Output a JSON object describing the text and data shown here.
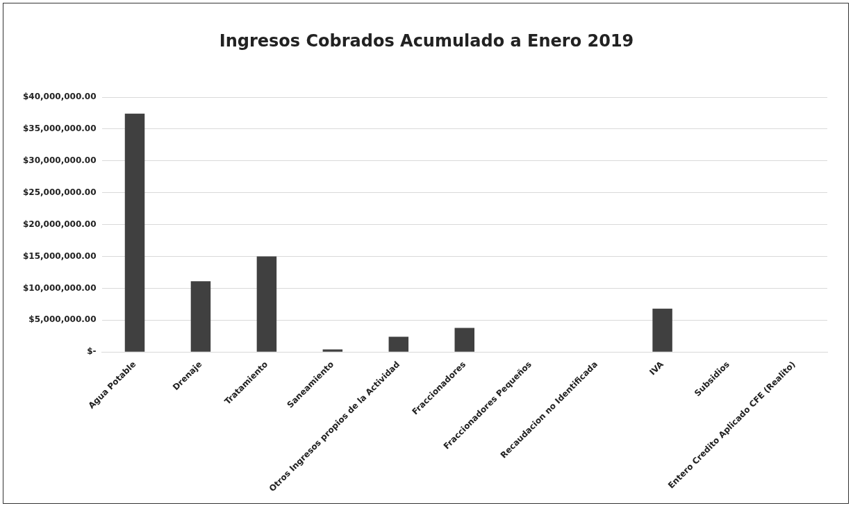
{
  "chart_data": {
    "type": "bar",
    "title": "Ingresos Cobrados Acumulado a Enero 2019",
    "categories": [
      "Agua Potable",
      "Drenaje",
      "Tratamiento",
      "Saneamiento",
      "Otros Ingresos propios de la Actividad",
      "Fraccionadores",
      "Fraccionadores Pequeños",
      "Recaudacion no Identificada",
      "IVA",
      "Subsidios",
      "Entero Credito Aplicado CFE (Realito)"
    ],
    "values": [
      37400000,
      11100000,
      15000000,
      400000,
      2400000,
      3800000,
      0,
      0,
      6800000,
      0,
      0
    ],
    "color": "#404040",
    "ylim": [
      0,
      40000000
    ],
    "yticks": [
      {
        "value": 0,
        "label": "$-"
      },
      {
        "value": 5000000,
        "label": "$5,000,000.00"
      },
      {
        "value": 10000000,
        "label": "$10,000,000.00"
      },
      {
        "value": 15000000,
        "label": "$15,000,000.00"
      },
      {
        "value": 20000000,
        "label": "$20,000,000.00"
      },
      {
        "value": 25000000,
        "label": "$25,000,000.00"
      },
      {
        "value": 30000000,
        "label": "$30,000,000.00"
      },
      {
        "value": 35000000,
        "label": "$35,000,000.00"
      },
      {
        "value": 40000000,
        "label": "$40,000,000.00"
      }
    ],
    "grid": "y"
  }
}
